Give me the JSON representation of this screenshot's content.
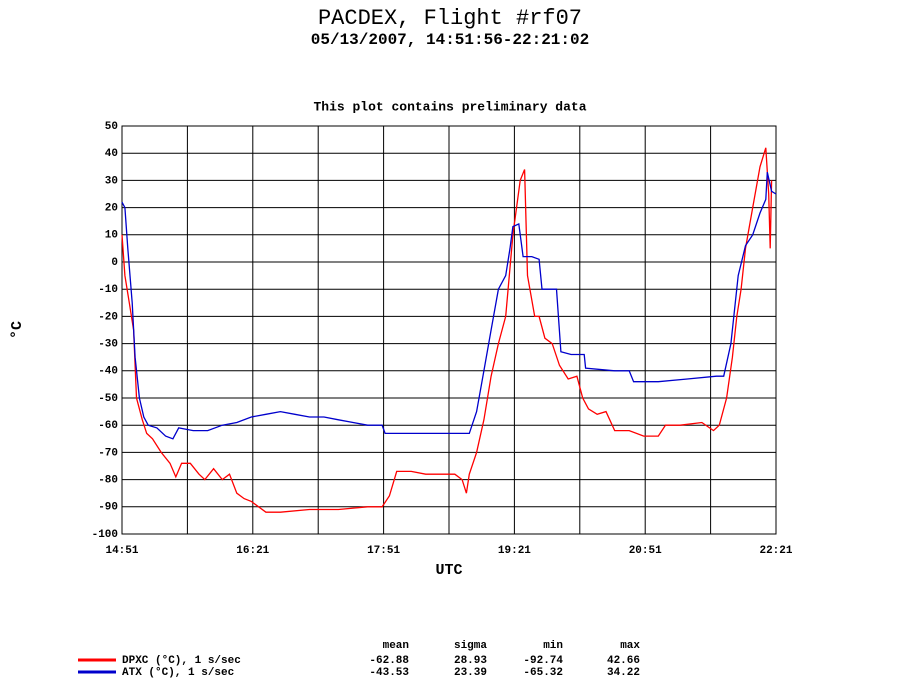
{
  "chart_data": {
    "type": "line",
    "title": "PACDEX, Flight #rf07",
    "subtitle": "05/13/2007, 14:51:56-22:21:02",
    "note": "This plot contains preliminary data",
    "xlabel": "UTC",
    "ylabel": "°C",
    "xlim": [
      "14:51",
      "22:21"
    ],
    "xticks": [
      "14:51",
      "16:21",
      "17:51",
      "19:21",
      "20:51",
      "22:21"
    ],
    "x_grid": [
      "15:36",
      "17:06",
      "18:36",
      "20:06",
      "21:36"
    ],
    "ylim": [
      -100,
      50
    ],
    "yticks": [
      50,
      40,
      30,
      20,
      10,
      0,
      -10,
      -20,
      -30,
      -40,
      -50,
      -60,
      -70,
      -80,
      -90,
      -100
    ],
    "grid": true,
    "stats_columns": [
      "mean",
      "sigma",
      "min",
      "max"
    ],
    "series": [
      {
        "name": "DPXC (°C), 1 s/sec",
        "color": "#ff0000",
        "stats": {
          "mean": -62.88,
          "sigma": 28.93,
          "min": -92.74,
          "max": 42.66
        },
        "x": [
          "14:51",
          "14:53",
          "14:56",
          "14:59",
          "15:01",
          "15:05",
          "15:08",
          "15:12",
          "15:18",
          "15:24",
          "15:28",
          "15:32",
          "15:38",
          "15:44",
          "15:48",
          "15:54",
          "16:00",
          "16:05",
          "16:10",
          "16:15",
          "16:20",
          "16:25",
          "16:30",
          "16:40",
          "17:00",
          "17:20",
          "17:40",
          "17:50",
          "17:55",
          "18:00",
          "18:10",
          "18:20",
          "18:30",
          "18:40",
          "18:45",
          "18:48",
          "18:50",
          "18:55",
          "19:00",
          "19:05",
          "19:10",
          "19:15",
          "19:20",
          "19:25",
          "19:28",
          "19:30",
          "19:35",
          "19:38",
          "19:42",
          "19:47",
          "19:52",
          "19:58",
          "20:04",
          "20:08",
          "20:12",
          "20:18",
          "20:24",
          "20:30",
          "20:40",
          "20:50",
          "21:00",
          "21:05",
          "21:15",
          "21:30",
          "21:38",
          "21:42",
          "21:47",
          "21:51",
          "21:54",
          "21:57",
          "22:00",
          "22:05",
          "22:10",
          "22:14",
          "22:16",
          "22:17",
          "22:18"
        ],
        "values": [
          10,
          -5,
          -15,
          -25,
          -50,
          -58,
          -63,
          -65,
          -70,
          -74,
          -79,
          -74,
          -74,
          -78,
          -80,
          -76,
          -80,
          -78,
          -85,
          -87,
          -88,
          -90,
          -92,
          -92,
          -91,
          -91,
          -90,
          -90,
          -86,
          -77,
          -77,
          -78,
          -78,
          -78,
          -80,
          -85,
          -78,
          -70,
          -58,
          -42,
          -30,
          -20,
          10,
          30,
          34,
          -5,
          -20,
          -20,
          -28,
          -30,
          -38,
          -43,
          -42,
          -50,
          -54,
          -56,
          -55,
          -62,
          -62,
          -64,
          -64,
          -60,
          -60,
          -59,
          -62,
          -60,
          -50,
          -35,
          -20,
          -10,
          5,
          20,
          35,
          42,
          25,
          5,
          30
        ]
      },
      {
        "name": "ATX (°C), 1 s/sec",
        "color": "#0000cc",
        "stats": {
          "mean": -43.53,
          "sigma": 23.39,
          "min": -65.32,
          "max": 34.22
        },
        "x": [
          "14:51",
          "14:53",
          "14:55",
          "14:58",
          "15:00",
          "15:03",
          "15:06",
          "15:09",
          "15:15",
          "15:21",
          "15:26",
          "15:30",
          "15:40",
          "15:50",
          "16:00",
          "16:10",
          "16:20",
          "16:30",
          "16:40",
          "16:50",
          "17:00",
          "17:10",
          "17:20",
          "17:30",
          "17:40",
          "17:50",
          "17:52",
          "18:00",
          "18:20",
          "18:40",
          "18:50",
          "18:55",
          "19:00",
          "19:05",
          "19:10",
          "19:15",
          "19:18",
          "19:20",
          "19:24",
          "19:27",
          "19:33",
          "19:38",
          "19:40",
          "19:50",
          "19:53",
          "20:00",
          "20:09",
          "20:10",
          "20:30",
          "20:40",
          "20:43",
          "21:00",
          "21:20",
          "21:40",
          "21:45",
          "21:50",
          "21:55",
          "22:00",
          "22:05",
          "22:10",
          "22:14",
          "22:15",
          "22:18",
          "22:21"
        ],
        "values": [
          22,
          20,
          5,
          -15,
          -35,
          -50,
          -57,
          -60,
          -61,
          -64,
          -65,
          -61,
          -62,
          -62,
          -60,
          -59,
          -57,
          -56,
          -55,
          -56,
          -57,
          -57,
          -58,
          -59,
          -60,
          -60,
          -63,
          -63,
          -63,
          -63,
          -63,
          -55,
          -40,
          -25,
          -10,
          -5,
          5,
          13,
          14,
          2,
          2,
          1,
          -10,
          -10,
          -33,
          -34,
          -34,
          -39,
          -40,
          -40,
          -44,
          -44,
          -43,
          -42,
          -42,
          -30,
          -5,
          6,
          10,
          18,
          23,
          33,
          26,
          25
        ]
      }
    ]
  }
}
